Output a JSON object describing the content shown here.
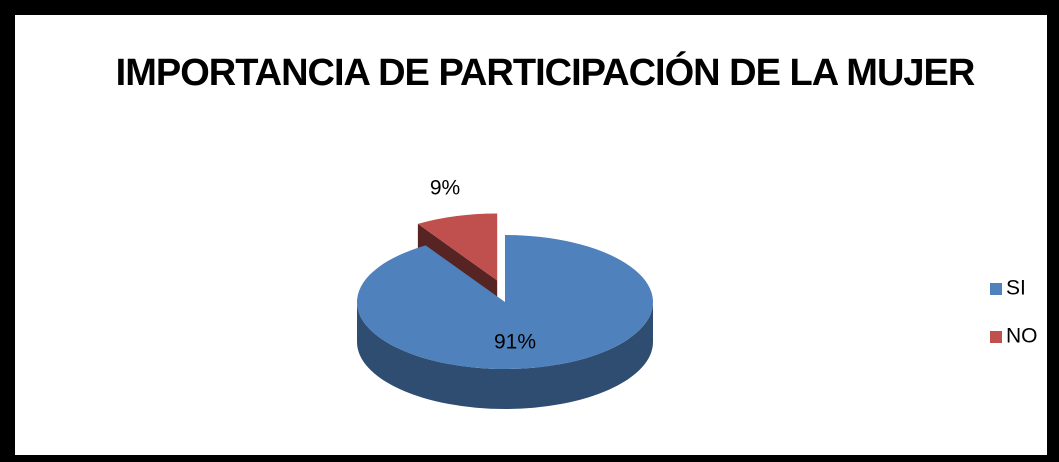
{
  "chart_data": {
    "type": "pie",
    "title": "IMPORTANCIA DE PARTICIPACIÓN DE LA MUJER",
    "categories": [
      "SI",
      "NO"
    ],
    "values": [
      91,
      9
    ],
    "value_labels": [
      "91%",
      "9%"
    ],
    "colors": [
      "#4f81bd",
      "#c0504d"
    ],
    "legend": "right"
  }
}
